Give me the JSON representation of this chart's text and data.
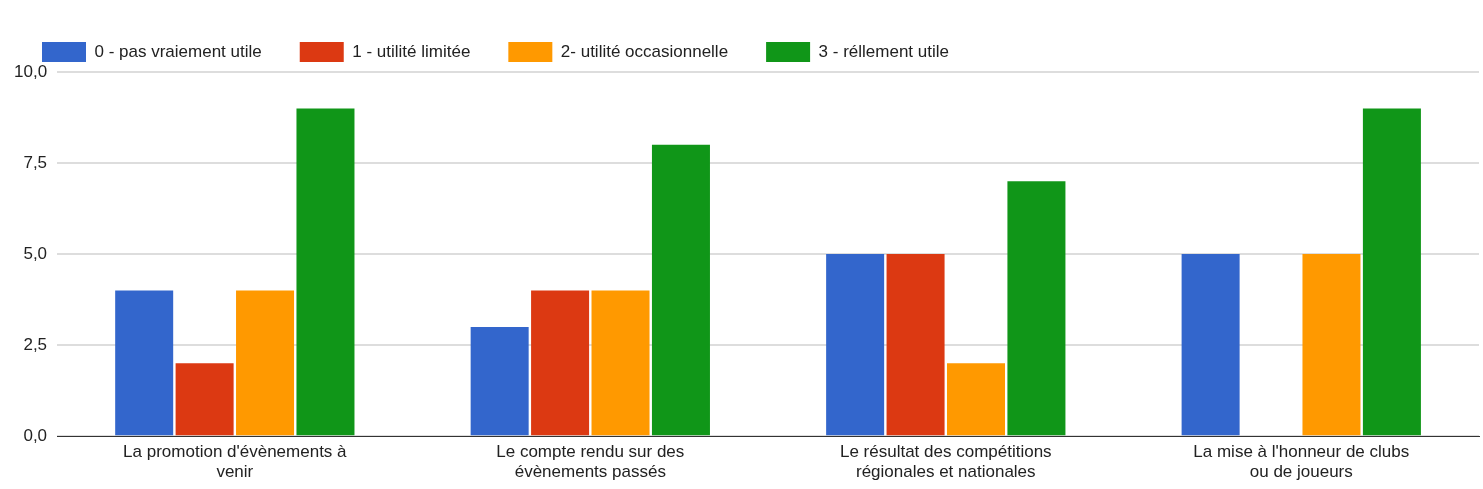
{
  "chart_data": {
    "type": "bar",
    "categories": [
      "La promotion d'évènements à venir",
      "Le compte rendu sur des évènements passés",
      "Le résultat des compétitions régionales et nationales",
      "La mise à l'honneur de clubs ou de joueurs"
    ],
    "series": [
      {
        "name": "0 - pas vraiement utile",
        "color": "#3366cc",
        "values": [
          4,
          3,
          5,
          5
        ]
      },
      {
        "name": "1 - utilité limitée",
        "color": "#dc3912",
        "values": [
          2,
          4,
          5,
          0
        ]
      },
      {
        "name": "2- utilité occasionnelle",
        "color": "#ff9900",
        "values": [
          4,
          4,
          2,
          5
        ]
      },
      {
        "name": "3 - réllement utile",
        "color": "#109618",
        "values": [
          9,
          8,
          7,
          9
        ]
      }
    ],
    "ylim": [
      0,
      10
    ],
    "yticks": [
      {
        "value": 0,
        "label": "0,0"
      },
      {
        "value": 2.5,
        "label": "2,5"
      },
      {
        "value": 5,
        "label": "5,0"
      },
      {
        "value": 7.5,
        "label": "7,5"
      },
      {
        "value": 10,
        "label": "10,0"
      }
    ],
    "grid": "y",
    "legend": "top"
  }
}
